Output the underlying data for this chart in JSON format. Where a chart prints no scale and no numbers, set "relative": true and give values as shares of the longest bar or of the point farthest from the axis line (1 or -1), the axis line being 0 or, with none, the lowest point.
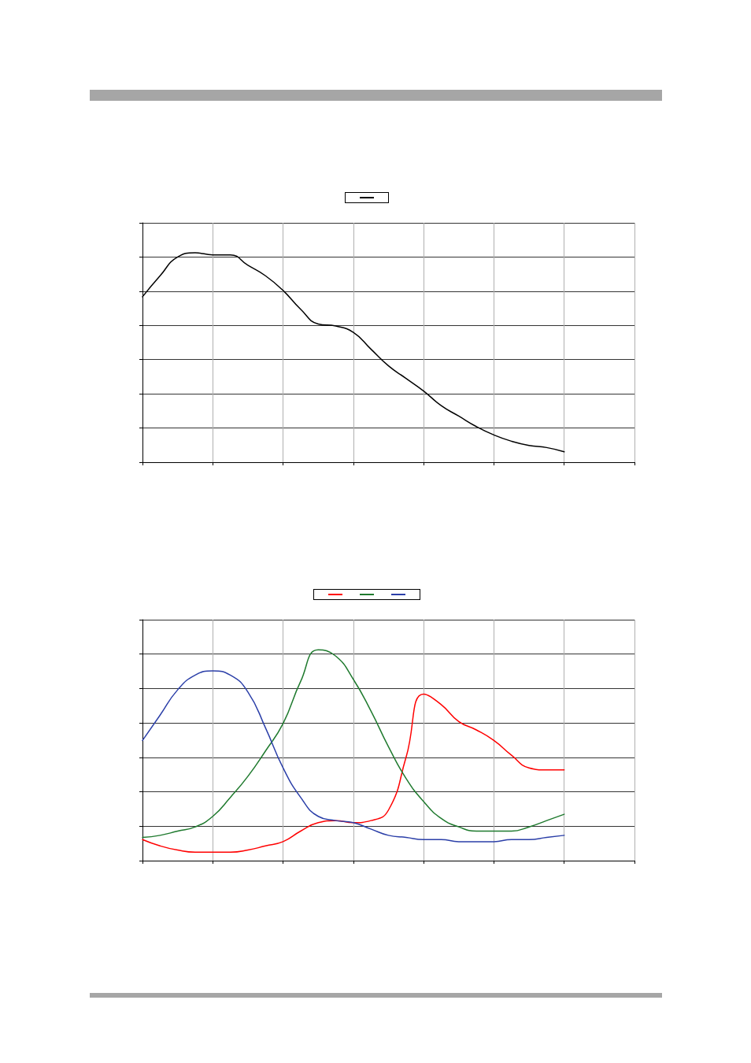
{
  "chart_data": [
    {
      "type": "line",
      "relative": true,
      "grid": true,
      "marker": "none",
      "categories": [
        null,
        null,
        null,
        null,
        null,
        null,
        null,
        null,
        null,
        null,
        null,
        null,
        null,
        null,
        null,
        null,
        null,
        null,
        null,
        null,
        null,
        null,
        null,
        null,
        null,
        null,
        null,
        null,
        null
      ],
      "series": [
        {
          "color": "#000000",
          "values": [
            0.79,
            0.89,
            0.98,
            1,
            0.99,
            0.99,
            0.94,
            0.89,
            0.82,
            0.73,
            0.66,
            0.65,
            0.62,
            0.54,
            0.46,
            0.4,
            0.34,
            0.27,
            0.22,
            0.17,
            0.13,
            0.1,
            0.08,
            0.07,
            0.05,
            null,
            null,
            null,
            null
          ]
        }
      ]
    },
    {
      "type": "line",
      "relative": true,
      "grid": true,
      "marker": "none",
      "categories": [
        null,
        null,
        null,
        null,
        null,
        null,
        null,
        null,
        null,
        null,
        null,
        null,
        null,
        null,
        null,
        null,
        null,
        null,
        null,
        null,
        null,
        null,
        null,
        null,
        null,
        null,
        null,
        null,
        null
      ],
      "series": [
        {
          "color": "#ff0000",
          "values": [
            0.1,
            0.07,
            0.05,
            0.04,
            0.04,
            0.04,
            0.05,
            0.07,
            0.09,
            0.14,
            0.18,
            0.19,
            0.18,
            0.19,
            0.24,
            0.49,
            0.79,
            0.74,
            0.66,
            0.62,
            0.57,
            0.5,
            0.44,
            0.43,
            0.43,
            null,
            null,
            null,
            null
          ]
        },
        {
          "color": "#1f7a2e",
          "values": [
            0.11,
            0.12,
            0.14,
            0.16,
            0.21,
            0.3,
            0.4,
            0.52,
            0.65,
            0.85,
            1,
            0.97,
            0.86,
            0.71,
            0.54,
            0.39,
            0.28,
            0.2,
            0.16,
            0.14,
            0.14,
            0.14,
            0.16,
            0.19,
            0.22,
            null,
            null,
            null,
            null
          ]
        },
        {
          "color": "#2b3fa8",
          "values": [
            0.57,
            0.69,
            0.81,
            0.88,
            0.9,
            0.88,
            0.8,
            0.63,
            0.44,
            0.3,
            0.21,
            0.19,
            0.18,
            0.15,
            0.12,
            0.11,
            0.1,
            0.1,
            0.09,
            0.09,
            0.09,
            0.1,
            0.1,
            0.11,
            0.12,
            null,
            null,
            null,
            null
          ]
        }
      ]
    }
  ]
}
